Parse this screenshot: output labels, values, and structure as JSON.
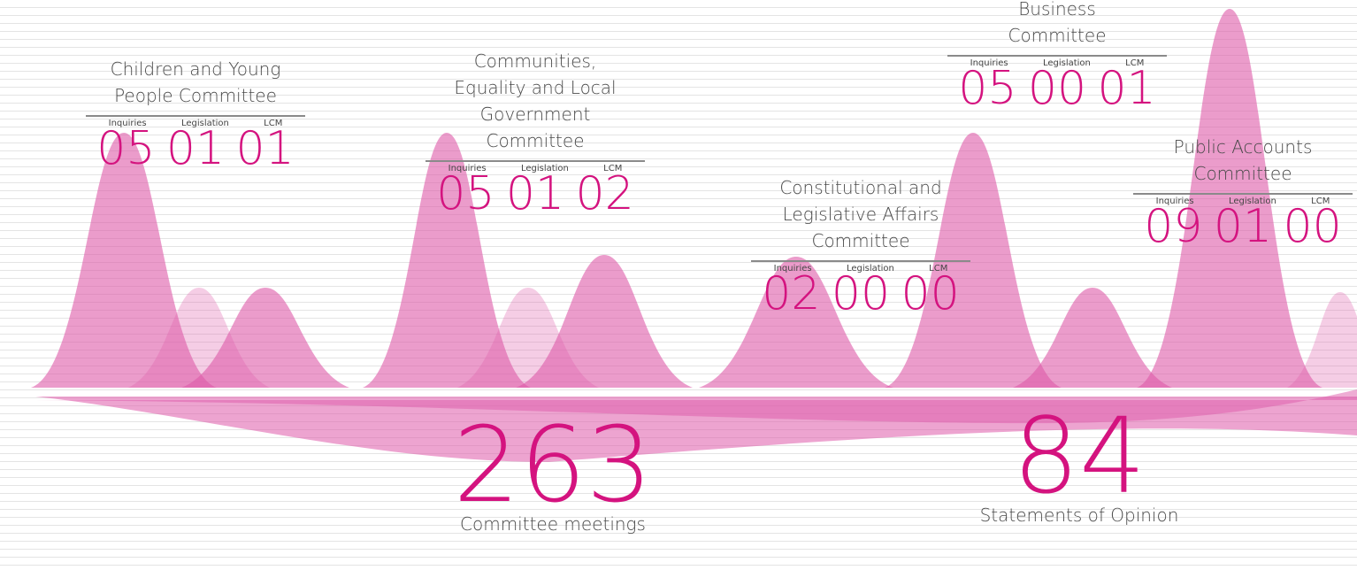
{
  "committees": [
    {
      "title": "Children and Young People Committee",
      "columns": [
        {
          "label": "Inquiries",
          "value": "05"
        },
        {
          "label": "Legislation",
          "value": "01"
        },
        {
          "label": "LCM",
          "value": "01"
        }
      ]
    },
    {
      "title": "Communities, Equality and Local Government Committee",
      "columns": [
        {
          "label": "Inquiries",
          "value": "05"
        },
        {
          "label": "Legislation",
          "value": "01"
        },
        {
          "label": "LCM",
          "value": "02"
        }
      ]
    },
    {
      "title": "Constitutional and Legislative Affairs Committee",
      "columns": [
        {
          "label": "Inquiries",
          "value": "02"
        },
        {
          "label": "Legislation",
          "value": "00"
        },
        {
          "label": "LCM",
          "value": "00"
        }
      ]
    },
    {
      "title": "Enterprise and Business Committee",
      "columns": [
        {
          "label": "Inquiries",
          "value": "05"
        },
        {
          "label": "Legislation",
          "value": "00"
        },
        {
          "label": "LCM",
          "value": "01"
        }
      ]
    },
    {
      "title": "Public Accounts Committee",
      "columns": [
        {
          "label": "Inquiries",
          "value": "09"
        },
        {
          "label": "Legislation",
          "value": "01"
        },
        {
          "label": "LCM",
          "value": "00"
        }
      ]
    }
  ],
  "totals": [
    {
      "value": "263",
      "label": "Committee meetings"
    },
    {
      "value": "84",
      "label": "Statements of Opinion"
    }
  ]
}
